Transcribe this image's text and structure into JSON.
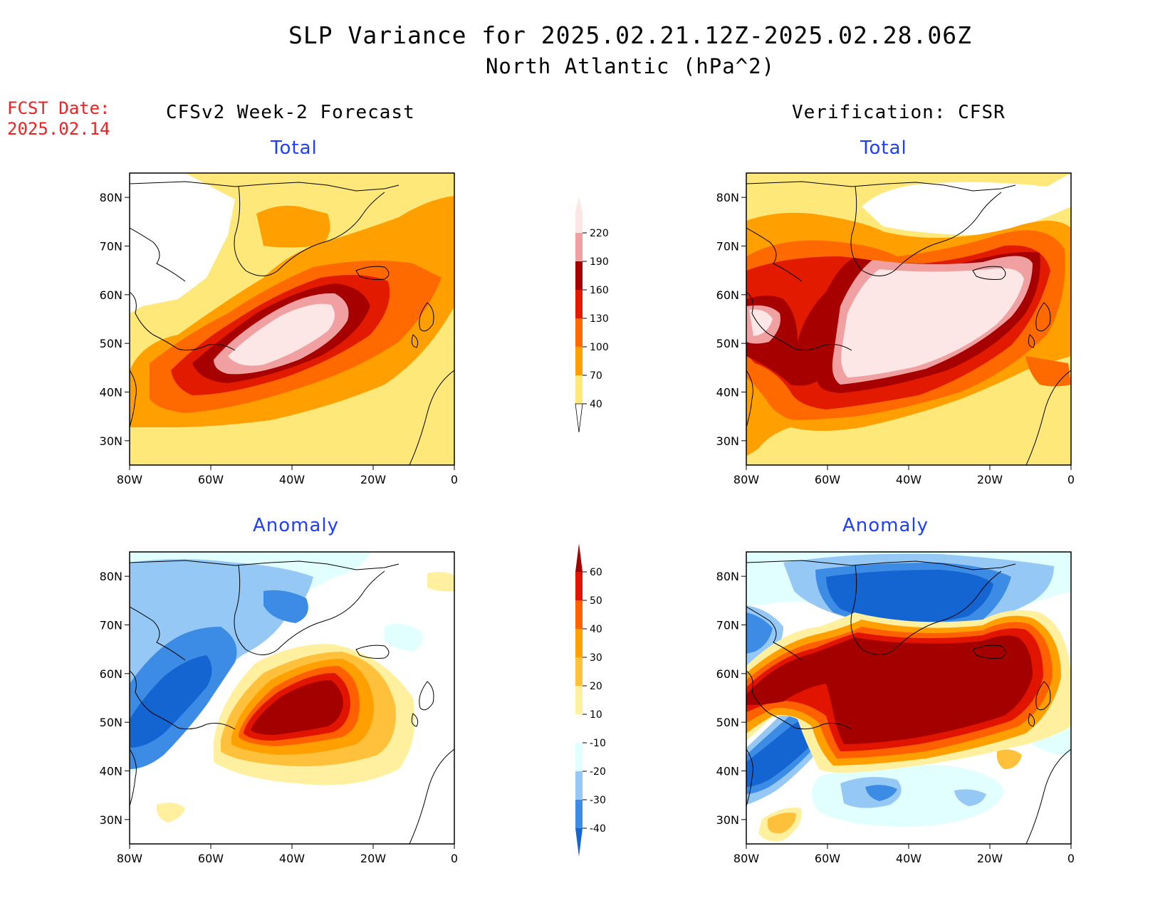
{
  "title": {
    "line1": "SLP Variance for 2025.02.21.12Z-2025.02.28.06Z",
    "line2": "North Atlantic (hPa^2)"
  },
  "forecast_date": {
    "label": "FCST Date:",
    "value": "2025.02.14"
  },
  "columns": {
    "left": "CFSv2 Week-2 Forecast",
    "right": "Verification: CFSR"
  },
  "panels": {
    "top_left": "Total",
    "top_right": "Total",
    "bottom_left": "Anomaly",
    "bottom_right": "Anomaly"
  },
  "axes": {
    "lat_labels": [
      "80N",
      "70N",
      "60N",
      "50N",
      "40N",
      "30N"
    ],
    "lon_labels": [
      "80W",
      "60W",
      "40W",
      "20W",
      "0"
    ]
  },
  "colorbar_total": {
    "levels": [
      "40",
      "70",
      "100",
      "130",
      "160",
      "190",
      "220"
    ],
    "colors": [
      "#ffe87a",
      "#ffa000",
      "#ff6a00",
      "#e11a00",
      "#a60000",
      "#f0a0a0",
      "#fde6e6"
    ]
  },
  "colorbar_anomaly": {
    "levels": [
      "-40",
      "-30",
      "-20",
      "-10",
      "10",
      "20",
      "30",
      "40",
      "50",
      "60"
    ],
    "colors": [
      "#1464d2",
      "#3c8ce6",
      "#96c8f5",
      "#e1ffff",
      "#ffffff",
      "#fff0a0",
      "#ffc03c",
      "#ffa000",
      "#ff6000",
      "#e11400",
      "#a50000"
    ]
  },
  "colors": {
    "fcst_date": "#ee2222",
    "subtitle": "#1f3fff"
  }
}
